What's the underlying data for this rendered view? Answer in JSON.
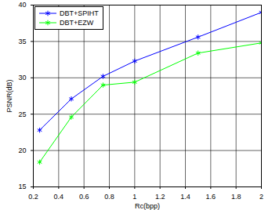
{
  "chart_data": {
    "type": "line",
    "x_label": "Rc(bpp)",
    "y_label": "PSNR(dB)",
    "x": [
      0.25,
      0.5,
      0.75,
      1,
      1.5,
      2
    ],
    "series": [
      {
        "name": "DBT+SPIHT",
        "color": "#0000ff",
        "marker": "asterisk",
        "line_style": "solid",
        "values": [
          22.8,
          27.1,
          30.2,
          32.3,
          35.6,
          39.0
        ]
      },
      {
        "name": "DBT+EZW",
        "color": "#00ff00",
        "marker": "asterisk",
        "line_style": "solid",
        "values": [
          18.4,
          24.6,
          29.0,
          29.4,
          33.4,
          34.8
        ]
      }
    ],
    "xlim": [
      0.2,
      2
    ],
    "xticks": [
      0.2,
      0.4,
      0.6,
      0.8,
      1,
      1.2,
      1.4,
      1.6,
      1.8,
      2
    ],
    "ylim": [
      15,
      40
    ],
    "yticks": [
      15,
      20,
      25,
      30,
      35,
      40
    ],
    "grid": true,
    "legend": "top-left"
  }
}
